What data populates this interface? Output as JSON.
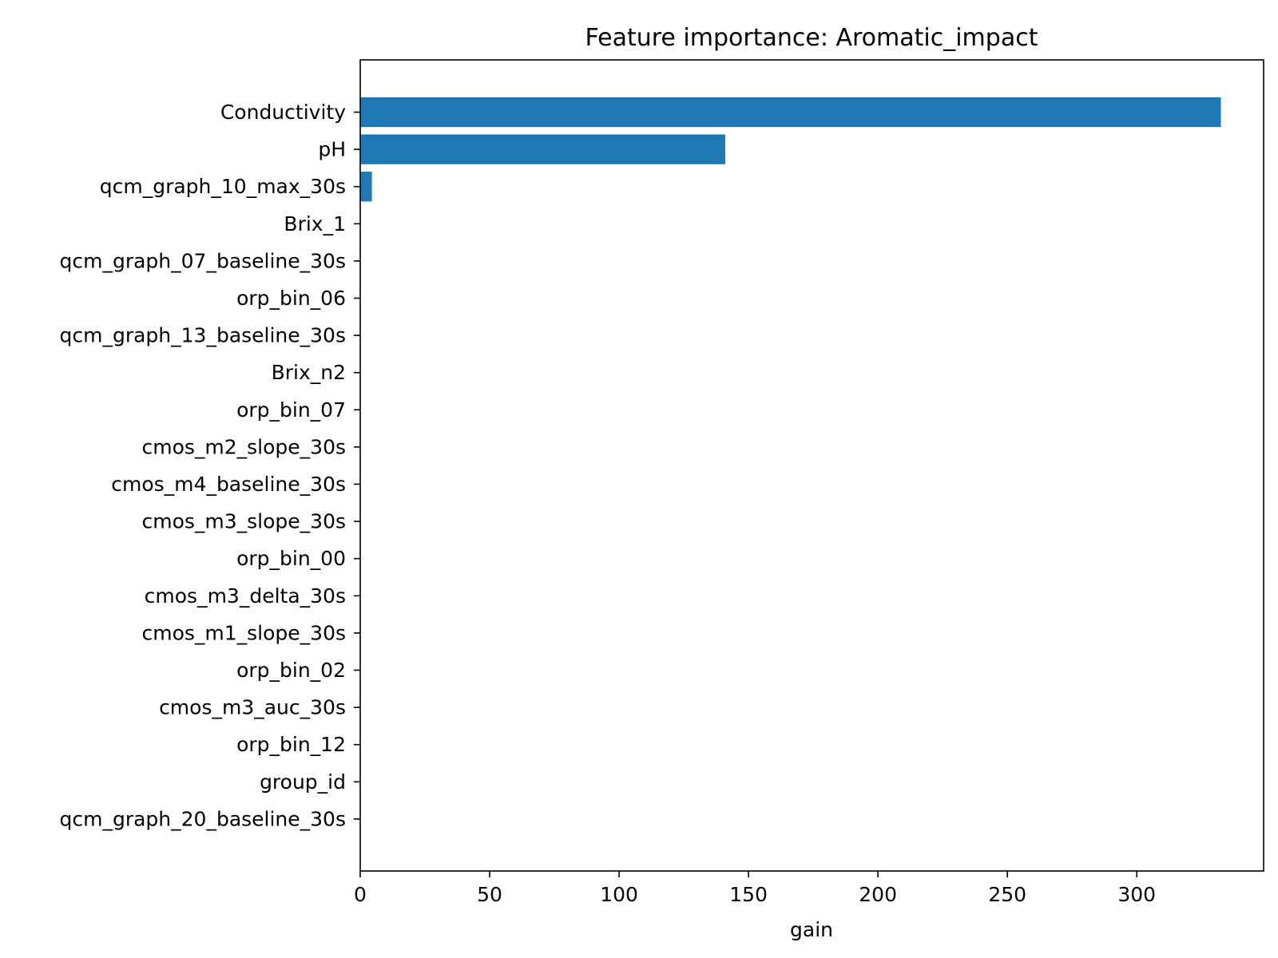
{
  "chart_data": {
    "type": "bar",
    "orientation": "horizontal",
    "title": "Feature importance: Aromatic_impact",
    "xlabel": "gain",
    "ylabel": "",
    "xlim": [
      0,
      349
    ],
    "xticks": [
      0,
      50,
      100,
      150,
      200,
      250,
      300
    ],
    "grid": false,
    "bar_color": "#1f77b4",
    "categories": [
      "Conductivity",
      "pH",
      "qcm_graph_10_max_30s",
      "Brix_1",
      "qcm_graph_07_baseline_30s",
      "orp_bin_06",
      "qcm_graph_13_baseline_30s",
      "Brix_n2",
      "orp_bin_07",
      "cmos_m2_slope_30s",
      "cmos_m4_baseline_30s",
      "cmos_m3_slope_30s",
      "orp_bin_00",
      "cmos_m3_delta_30s",
      "cmos_m1_slope_30s",
      "orp_bin_02",
      "cmos_m3_auc_30s",
      "orp_bin_12",
      "group_id",
      "qcm_graph_20_baseline_30s"
    ],
    "values": [
      332.5,
      141,
      4.5,
      0,
      0,
      0,
      0,
      0,
      0,
      0,
      0,
      0,
      0,
      0,
      0,
      0,
      0,
      0,
      0,
      0
    ]
  }
}
